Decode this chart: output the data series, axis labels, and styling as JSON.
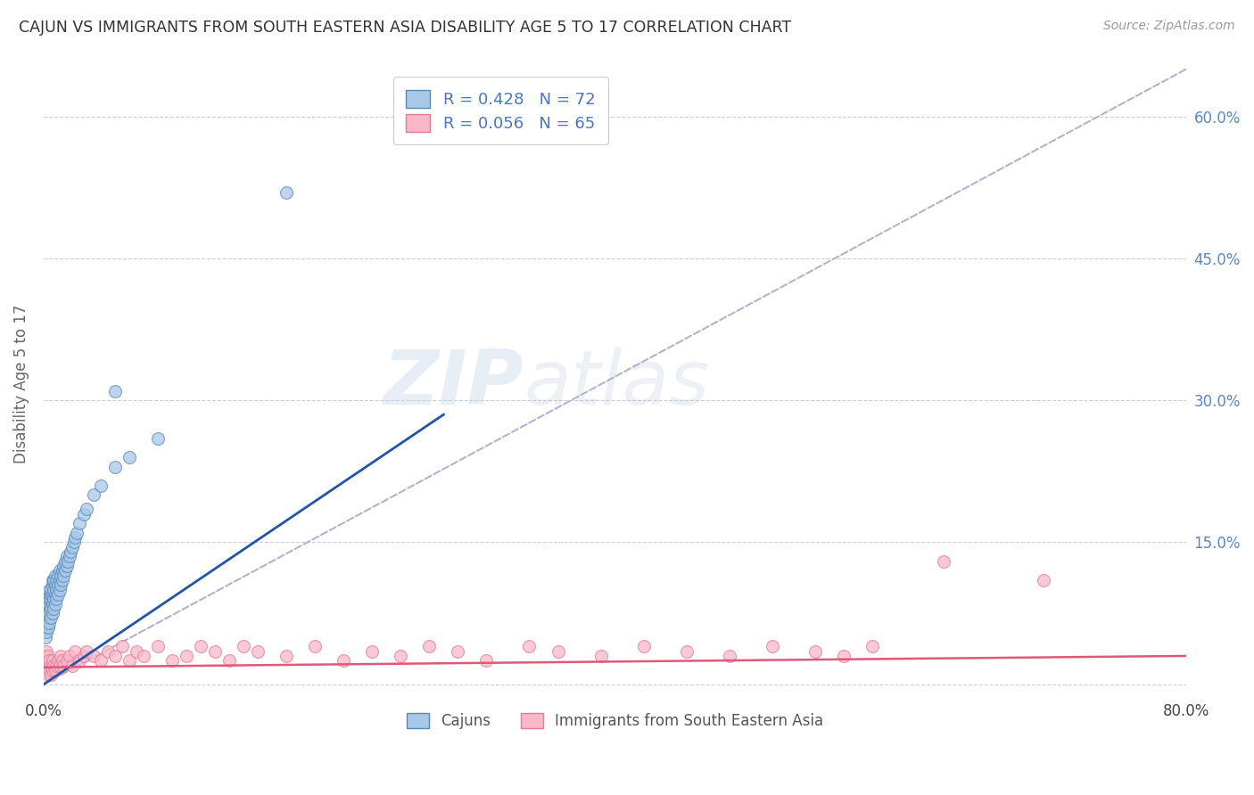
{
  "title": "CAJUN VS IMMIGRANTS FROM SOUTH EASTERN ASIA DISABILITY AGE 5 TO 17 CORRELATION CHART",
  "source": "Source: ZipAtlas.com",
  "ylabel": "Disability Age 5 to 17",
  "xlim": [
    0.0,
    0.8
  ],
  "ylim": [
    -0.015,
    0.65
  ],
  "xticks": [
    0.0,
    0.1,
    0.2,
    0.3,
    0.4,
    0.5,
    0.6,
    0.7,
    0.8
  ],
  "xticklabels": [
    "0.0%",
    "",
    "",
    "",
    "",
    "",
    "",
    "",
    "80.0%"
  ],
  "ytick_positions": [
    0.0,
    0.15,
    0.3,
    0.45,
    0.6
  ],
  "ytick_labels_right": [
    "",
    "15.0%",
    "30.0%",
    "45.0%",
    "60.0%"
  ],
  "blue_color": "#a8c8e8",
  "blue_edge": "#5588bb",
  "pink_color": "#f8b8c8",
  "pink_edge": "#e87898",
  "blue_line_color": "#2255aa",
  "pink_line_color": "#e05878",
  "diagonal_color": "#aaaacc",
  "watermark_zip": "ZIP",
  "watermark_atlas": "atlas",
  "legend_label_blue": "Cajuns",
  "legend_label_pink": "Immigrants from South Eastern Asia",
  "cajun_x": [
    0.001,
    0.001,
    0.001,
    0.002,
    0.002,
    0.002,
    0.002,
    0.003,
    0.003,
    0.003,
    0.003,
    0.003,
    0.004,
    0.004,
    0.004,
    0.004,
    0.004,
    0.004,
    0.005,
    0.005,
    0.005,
    0.005,
    0.005,
    0.006,
    0.006,
    0.006,
    0.006,
    0.006,
    0.007,
    0.007,
    0.007,
    0.007,
    0.008,
    0.008,
    0.008,
    0.008,
    0.009,
    0.009,
    0.009,
    0.01,
    0.01,
    0.01,
    0.011,
    0.011,
    0.011,
    0.012,
    0.012,
    0.013,
    0.013,
    0.014,
    0.014,
    0.015,
    0.015,
    0.016,
    0.016,
    0.017,
    0.018,
    0.019,
    0.02,
    0.021,
    0.022,
    0.023,
    0.025,
    0.028,
    0.03,
    0.035,
    0.04,
    0.05,
    0.06,
    0.08,
    0.05,
    0.17
  ],
  "cajun_y": [
    0.05,
    0.06,
    0.07,
    0.055,
    0.065,
    0.075,
    0.08,
    0.06,
    0.07,
    0.08,
    0.085,
    0.09,
    0.065,
    0.075,
    0.085,
    0.09,
    0.095,
    0.1,
    0.07,
    0.08,
    0.09,
    0.095,
    0.1,
    0.075,
    0.085,
    0.095,
    0.105,
    0.11,
    0.08,
    0.09,
    0.1,
    0.11,
    0.085,
    0.095,
    0.105,
    0.115,
    0.09,
    0.1,
    0.11,
    0.095,
    0.105,
    0.115,
    0.1,
    0.11,
    0.12,
    0.105,
    0.115,
    0.11,
    0.12,
    0.115,
    0.125,
    0.12,
    0.13,
    0.125,
    0.135,
    0.13,
    0.135,
    0.14,
    0.145,
    0.15,
    0.155,
    0.16,
    0.17,
    0.18,
    0.185,
    0.2,
    0.21,
    0.23,
    0.24,
    0.26,
    0.31,
    0.52
  ],
  "asia_x": [
    0.001,
    0.001,
    0.002,
    0.002,
    0.002,
    0.003,
    0.003,
    0.003,
    0.004,
    0.004,
    0.005,
    0.005,
    0.006,
    0.006,
    0.007,
    0.008,
    0.009,
    0.01,
    0.011,
    0.012,
    0.013,
    0.014,
    0.016,
    0.018,
    0.02,
    0.022,
    0.025,
    0.028,
    0.03,
    0.035,
    0.04,
    0.045,
    0.05,
    0.055,
    0.06,
    0.065,
    0.07,
    0.08,
    0.09,
    0.1,
    0.11,
    0.12,
    0.13,
    0.14,
    0.15,
    0.17,
    0.19,
    0.21,
    0.23,
    0.25,
    0.27,
    0.29,
    0.31,
    0.34,
    0.36,
    0.39,
    0.42,
    0.45,
    0.48,
    0.51,
    0.54,
    0.56,
    0.58,
    0.63,
    0.7
  ],
  "asia_y": [
    0.02,
    0.03,
    0.015,
    0.025,
    0.035,
    0.01,
    0.02,
    0.03,
    0.015,
    0.025,
    0.01,
    0.02,
    0.015,
    0.025,
    0.02,
    0.015,
    0.02,
    0.025,
    0.02,
    0.03,
    0.025,
    0.02,
    0.025,
    0.03,
    0.02,
    0.035,
    0.025,
    0.03,
    0.035,
    0.03,
    0.025,
    0.035,
    0.03,
    0.04,
    0.025,
    0.035,
    0.03,
    0.04,
    0.025,
    0.03,
    0.04,
    0.035,
    0.025,
    0.04,
    0.035,
    0.03,
    0.04,
    0.025,
    0.035,
    0.03,
    0.04,
    0.035,
    0.025,
    0.04,
    0.035,
    0.03,
    0.04,
    0.035,
    0.03,
    0.04,
    0.035,
    0.03,
    0.04,
    0.13,
    0.11
  ],
  "blue_trendline_x": [
    0.0,
    0.28
  ],
  "blue_trendline_y": [
    0.0,
    0.285
  ],
  "pink_trendline_x": [
    0.0,
    0.8
  ],
  "pink_trendline_y": [
    0.018,
    0.03
  ]
}
